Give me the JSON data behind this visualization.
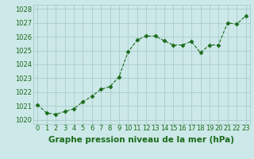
{
  "x": [
    0,
    1,
    2,
    3,
    4,
    5,
    6,
    7,
    8,
    9,
    10,
    11,
    12,
    13,
    14,
    15,
    16,
    17,
    18,
    19,
    20,
    21,
    22,
    23
  ],
  "y": [
    1021.1,
    1020.5,
    1020.4,
    1020.6,
    1020.8,
    1021.3,
    1021.7,
    1022.2,
    1022.4,
    1023.1,
    1024.9,
    1025.75,
    1026.05,
    1026.05,
    1025.7,
    1025.4,
    1025.4,
    1025.65,
    1024.85,
    1025.4,
    1025.4,
    1027.0,
    1026.9,
    1027.5
  ],
  "line_color": "#1a6b1a",
  "marker": "D",
  "marker_size": 2.5,
  "bg_color": "#cce8e8",
  "grid_color": "#aacccc",
  "xlabel": "Graphe pression niveau de la mer (hPa)",
  "xlabel_color": "#1a6b1a",
  "xlabel_fontsize": 7.5,
  "tick_color": "#1a6b1a",
  "tick_fontsize": 6,
  "ylim": [
    1019.7,
    1028.3
  ],
  "yticks": [
    1020,
    1021,
    1022,
    1023,
    1024,
    1025,
    1026,
    1027,
    1028
  ],
  "xlim": [
    -0.5,
    23.5
  ],
  "xticks": [
    0,
    1,
    2,
    3,
    4,
    5,
    6,
    7,
    8,
    9,
    10,
    11,
    12,
    13,
    14,
    15,
    16,
    17,
    18,
    19,
    20,
    21,
    22,
    23
  ]
}
